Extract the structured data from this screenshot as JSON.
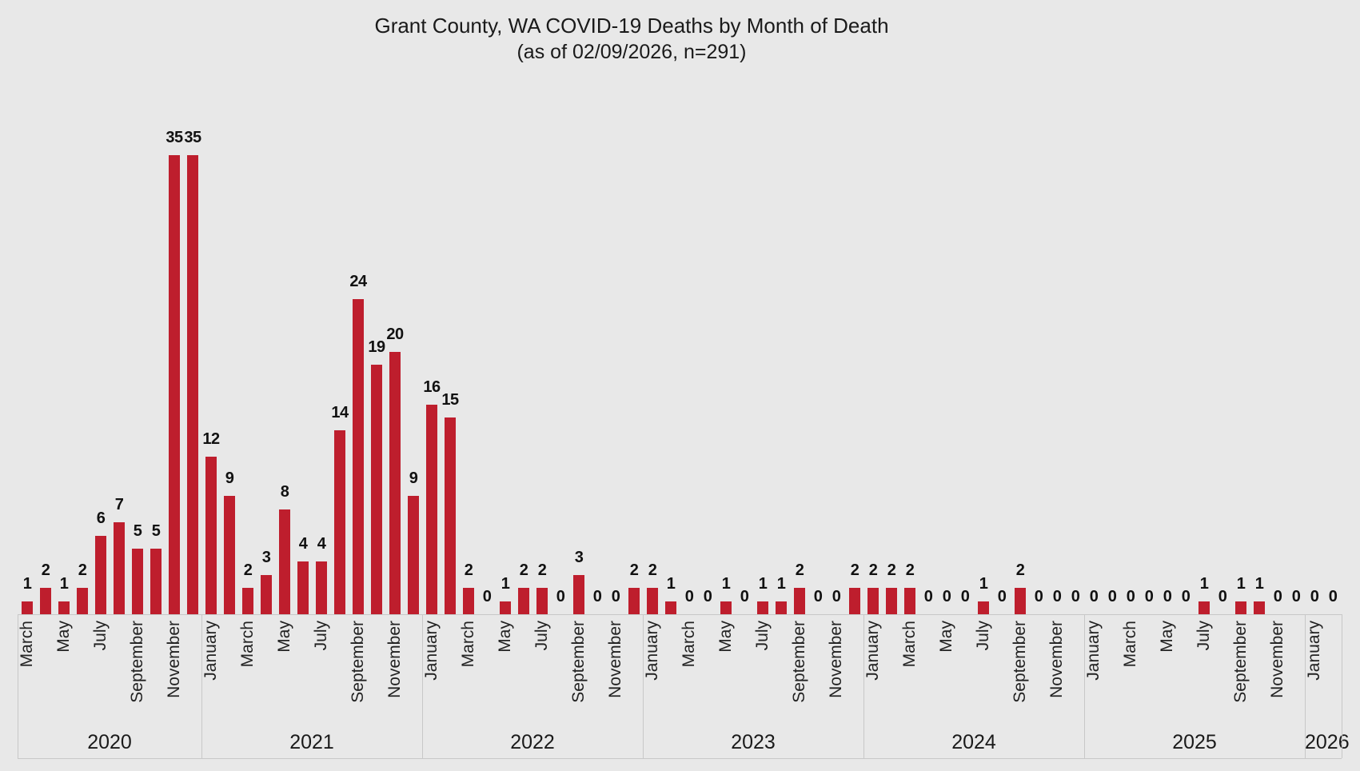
{
  "title": "Grant County, WA COVID-19 Deaths by Month of Death",
  "subtitle": "(as of 02/09/2026, n=291)",
  "colors": {
    "background": "#e8e8e8",
    "bar": "#be1e2d",
    "text": "#1a1a1a",
    "axis_line": "#c8c8c8"
  },
  "chart_data": {
    "type": "bar",
    "title": "Grant County, WA COVID-19 Deaths by Month of Death",
    "subtitle": "(as of 02/09/2026, n=291)",
    "xlabel": "",
    "ylabel": "",
    "ylim": [
      0,
      35
    ],
    "grid": false,
    "legend": "none",
    "bar_color": "#be1e2d",
    "value_labels_shown": true,
    "x_tick_note": "every other month labeled, rotated 90deg, grouped by year",
    "year_groups": [
      {
        "label": "2020",
        "count": 10
      },
      {
        "label": "2021",
        "count": 12
      },
      {
        "label": "2022",
        "count": 12
      },
      {
        "label": "2023",
        "count": 12
      },
      {
        "label": "2024",
        "count": 12
      },
      {
        "label": "2025",
        "count": 12
      },
      {
        "label": "2026",
        "count": 2
      }
    ],
    "months": [
      {
        "year": 2020,
        "label": "March",
        "value": 1,
        "tick": "March"
      },
      {
        "year": 2020,
        "label": "April",
        "value": 2,
        "tick": null
      },
      {
        "year": 2020,
        "label": "May",
        "value": 1,
        "tick": "May"
      },
      {
        "year": 2020,
        "label": "June",
        "value": 2,
        "tick": null
      },
      {
        "year": 2020,
        "label": "July",
        "value": 6,
        "tick": "July"
      },
      {
        "year": 2020,
        "label": "August",
        "value": 7,
        "tick": null
      },
      {
        "year": 2020,
        "label": "September",
        "value": 5,
        "tick": "September"
      },
      {
        "year": 2020,
        "label": "October",
        "value": 5,
        "tick": null
      },
      {
        "year": 2020,
        "label": "November",
        "value": 35,
        "tick": "November"
      },
      {
        "year": 2020,
        "label": "December",
        "value": 35,
        "tick": null
      },
      {
        "year": 2021,
        "label": "January",
        "value": 12,
        "tick": "January"
      },
      {
        "year": 2021,
        "label": "February",
        "value": 9,
        "tick": null
      },
      {
        "year": 2021,
        "label": "March",
        "value": 2,
        "tick": "March"
      },
      {
        "year": 2021,
        "label": "April",
        "value": 3,
        "tick": null
      },
      {
        "year": 2021,
        "label": "May",
        "value": 8,
        "tick": "May"
      },
      {
        "year": 2021,
        "label": "June",
        "value": 4,
        "tick": null
      },
      {
        "year": 2021,
        "label": "July",
        "value": 4,
        "tick": "July"
      },
      {
        "year": 2021,
        "label": "August",
        "value": 14,
        "tick": null
      },
      {
        "year": 2021,
        "label": "September",
        "value": 24,
        "tick": "September"
      },
      {
        "year": 2021,
        "label": "October",
        "value": 19,
        "tick": null
      },
      {
        "year": 2021,
        "label": "November",
        "value": 20,
        "tick": "November"
      },
      {
        "year": 2021,
        "label": "December",
        "value": 9,
        "tick": null
      },
      {
        "year": 2022,
        "label": "January",
        "value": 16,
        "tick": "January"
      },
      {
        "year": 2022,
        "label": "February",
        "value": 15,
        "tick": null
      },
      {
        "year": 2022,
        "label": "March",
        "value": 2,
        "tick": "March"
      },
      {
        "year": 2022,
        "label": "April",
        "value": 0,
        "tick": null
      },
      {
        "year": 2022,
        "label": "May",
        "value": 1,
        "tick": "May"
      },
      {
        "year": 2022,
        "label": "June",
        "value": 2,
        "tick": null
      },
      {
        "year": 2022,
        "label": "July",
        "value": 2,
        "tick": "July"
      },
      {
        "year": 2022,
        "label": "August",
        "value": 0,
        "tick": null
      },
      {
        "year": 2022,
        "label": "September",
        "value": 3,
        "tick": "September"
      },
      {
        "year": 2022,
        "label": "October",
        "value": 0,
        "tick": null
      },
      {
        "year": 2022,
        "label": "November",
        "value": 0,
        "tick": "November"
      },
      {
        "year": 2022,
        "label": "December",
        "value": 2,
        "tick": null
      },
      {
        "year": 2023,
        "label": "January",
        "value": 2,
        "tick": "January"
      },
      {
        "year": 2023,
        "label": "February",
        "value": 1,
        "tick": null
      },
      {
        "year": 2023,
        "label": "March",
        "value": 0,
        "tick": "March"
      },
      {
        "year": 2023,
        "label": "April",
        "value": 0,
        "tick": null
      },
      {
        "year": 2023,
        "label": "May",
        "value": 1,
        "tick": "May"
      },
      {
        "year": 2023,
        "label": "June",
        "value": 0,
        "tick": null
      },
      {
        "year": 2023,
        "label": "July",
        "value": 1,
        "tick": "July"
      },
      {
        "year": 2023,
        "label": "August",
        "value": 1,
        "tick": null
      },
      {
        "year": 2023,
        "label": "September",
        "value": 2,
        "tick": "September"
      },
      {
        "year": 2023,
        "label": "October",
        "value": 0,
        "tick": null
      },
      {
        "year": 2023,
        "label": "November",
        "value": 0,
        "tick": "November"
      },
      {
        "year": 2023,
        "label": "December",
        "value": 2,
        "tick": null
      },
      {
        "year": 2024,
        "label": "January",
        "value": 2,
        "tick": "January"
      },
      {
        "year": 2024,
        "label": "February",
        "value": 2,
        "tick": null
      },
      {
        "year": 2024,
        "label": "March",
        "value": 2,
        "tick": "March"
      },
      {
        "year": 2024,
        "label": "April",
        "value": 0,
        "tick": null
      },
      {
        "year": 2024,
        "label": "May",
        "value": 0,
        "tick": "May"
      },
      {
        "year": 2024,
        "label": "June",
        "value": 0,
        "tick": null
      },
      {
        "year": 2024,
        "label": "July",
        "value": 1,
        "tick": "July"
      },
      {
        "year": 2024,
        "label": "August",
        "value": 0,
        "tick": null
      },
      {
        "year": 2024,
        "label": "September",
        "value": 2,
        "tick": "September"
      },
      {
        "year": 2024,
        "label": "October",
        "value": 0,
        "tick": null
      },
      {
        "year": 2024,
        "label": "November",
        "value": 0,
        "tick": "November"
      },
      {
        "year": 2024,
        "label": "December",
        "value": 0,
        "tick": null
      },
      {
        "year": 2025,
        "label": "January",
        "value": 0,
        "tick": "January"
      },
      {
        "year": 2025,
        "label": "February",
        "value": 0,
        "tick": null
      },
      {
        "year": 2025,
        "label": "March",
        "value": 0,
        "tick": "March"
      },
      {
        "year": 2025,
        "label": "April",
        "value": 0,
        "tick": null
      },
      {
        "year": 2025,
        "label": "May",
        "value": 0,
        "tick": "May"
      },
      {
        "year": 2025,
        "label": "June",
        "value": 0,
        "tick": null
      },
      {
        "year": 2025,
        "label": "July",
        "value": 1,
        "tick": "July"
      },
      {
        "year": 2025,
        "label": "August",
        "value": 0,
        "tick": null
      },
      {
        "year": 2025,
        "label": "September",
        "value": 1,
        "tick": "September"
      },
      {
        "year": 2025,
        "label": "October",
        "value": 1,
        "tick": null
      },
      {
        "year": 2025,
        "label": "November",
        "value": 0,
        "tick": "November"
      },
      {
        "year": 2025,
        "label": "December",
        "value": 0,
        "tick": null
      },
      {
        "year": 2026,
        "label": "January",
        "value": 0,
        "tick": "January"
      },
      {
        "year": 2026,
        "label": "February",
        "value": 0,
        "tick": null
      }
    ]
  }
}
